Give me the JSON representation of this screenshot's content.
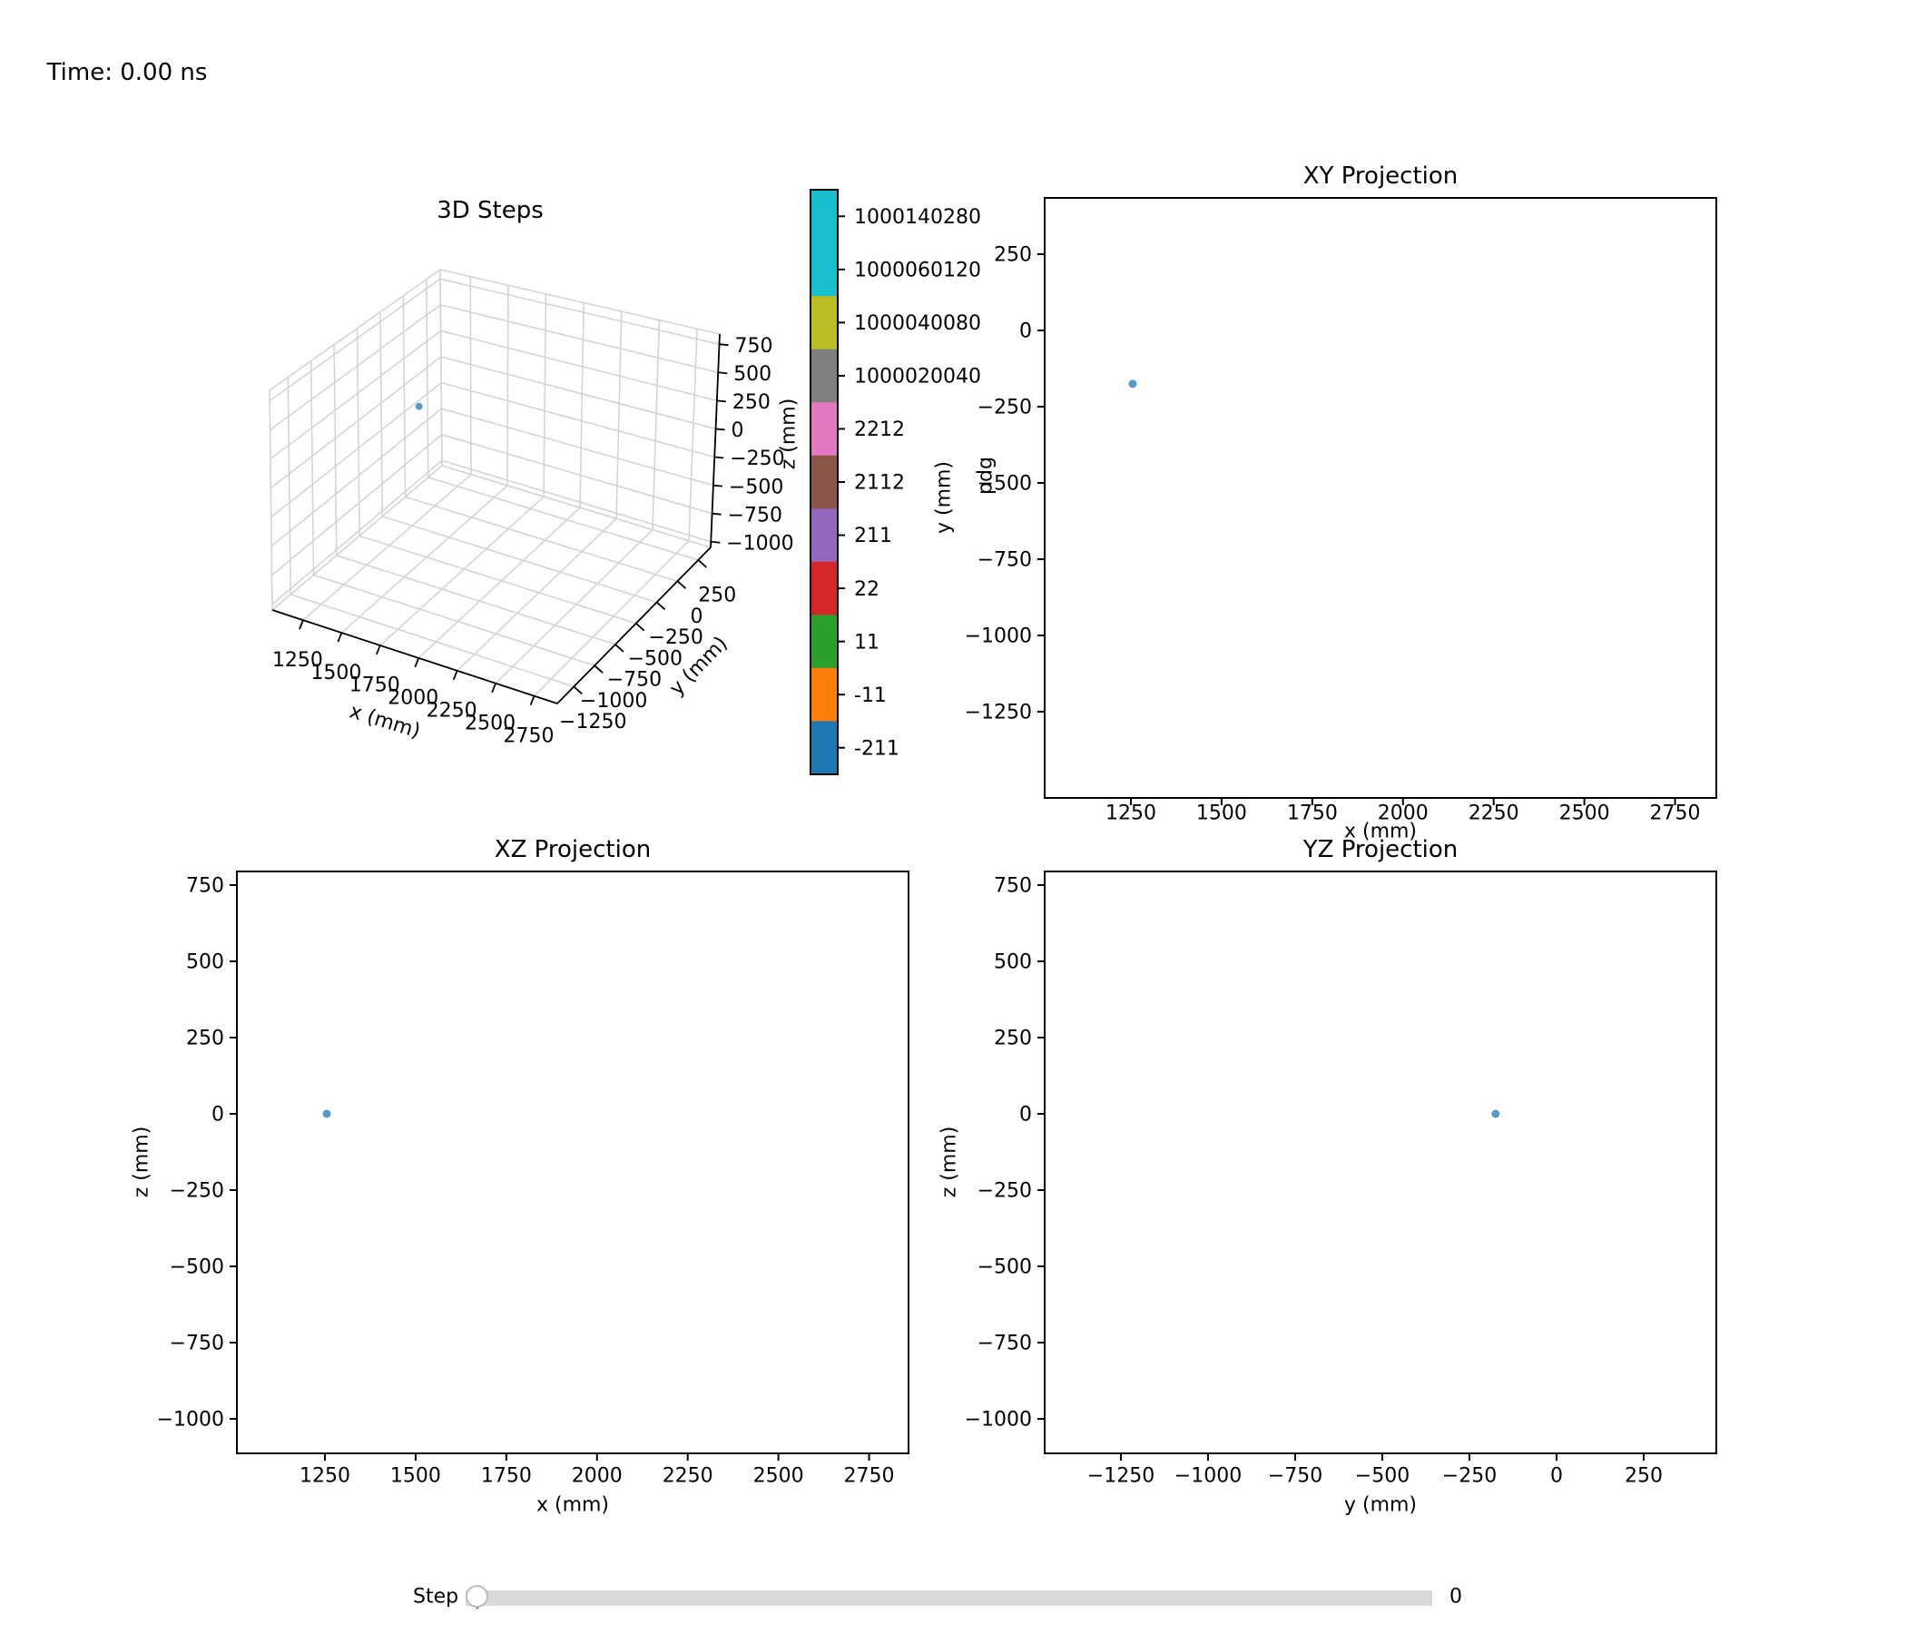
{
  "time_label": "Time: 0.00 ns",
  "slider": {
    "label": "Step",
    "value": "0"
  },
  "colorbar": {
    "label": "pdg",
    "entries": [
      {
        "pdg": "1000140280",
        "color": "#17becf"
      },
      {
        "pdg": "1000060120",
        "color": "#17becf"
      },
      {
        "pdg": "1000040080",
        "color": "#bcbd22"
      },
      {
        "pdg": "1000020040",
        "color": "#7f7f7f"
      },
      {
        "pdg": "2212",
        "color": "#e377c2"
      },
      {
        "pdg": "2112",
        "color": "#8c564b"
      },
      {
        "pdg": "211",
        "color": "#9467bd"
      },
      {
        "pdg": "22",
        "color": "#d62728"
      },
      {
        "pdg": "11",
        "color": "#2ca02c"
      },
      {
        "pdg": "-11",
        "color": "#ff7f0e"
      },
      {
        "pdg": "-211",
        "color": "#1f77b4"
      }
    ]
  },
  "point_style": {
    "color": "#1f77b4",
    "alpha": 0.75,
    "radius": 4.5
  },
  "chart_data": [
    {
      "id": "steps3d",
      "type": "scatter",
      "projection": "3d",
      "title": "3D Steps",
      "xlabel": "x (mm)",
      "ylabel": "y (mm)",
      "zlabel": "z (mm)",
      "xticks": [
        1250,
        1500,
        1750,
        2000,
        2250,
        2500,
        2750
      ],
      "yticks": [
        250,
        0,
        -250,
        -500,
        -750,
        -1000,
        -1250
      ],
      "zticks": [
        750,
        500,
        250,
        0,
        -250,
        -500,
        -750,
        -1000
      ],
      "xlim": [
        1050,
        2900
      ],
      "ylim": [
        -1450,
        400
      ],
      "zlim": [
        -1050,
        840
      ],
      "grid": true,
      "points": [
        {
          "x": 1255,
          "y": -175,
          "z": 0
        }
      ]
    },
    {
      "id": "xy",
      "type": "scatter",
      "title": "XY Projection",
      "xlabel": "x (mm)",
      "ylabel": "y (mm)",
      "xticks": [
        1250,
        1500,
        1750,
        2000,
        2250,
        2500,
        2750
      ],
      "yticks": [
        250,
        0,
        -250,
        -500,
        -750,
        -1000,
        -1250
      ],
      "xlim": [
        1010,
        2865
      ],
      "ylim": [
        -1530,
        435
      ],
      "grid": false,
      "points": [
        {
          "x": 1255,
          "y": -175
        }
      ]
    },
    {
      "id": "xz",
      "type": "scatter",
      "title": "XZ Projection",
      "xlabel": "x (mm)",
      "ylabel": "z (mm)",
      "xticks": [
        1250,
        1500,
        1750,
        2000,
        2250,
        2500,
        2750
      ],
      "yticks": [
        750,
        500,
        250,
        0,
        -250,
        -500,
        -750,
        -1000
      ],
      "xlim": [
        1007,
        2860
      ],
      "ylim": [
        -1113,
        795
      ],
      "grid": false,
      "points": [
        {
          "x": 1255,
          "z": 0
        }
      ]
    },
    {
      "id": "yz",
      "type": "scatter",
      "title": "YZ Projection",
      "xlabel": "y (mm)",
      "ylabel": "z (mm)",
      "xticks": [
        -1250,
        -1000,
        -750,
        -500,
        -250,
        0,
        250
      ],
      "yticks": [
        750,
        500,
        250,
        0,
        -250,
        -500,
        -750,
        -1000
      ],
      "xlim": [
        -1469,
        458
      ],
      "ylim": [
        -1113,
        795
      ],
      "grid": false,
      "points": [
        {
          "y": -175,
          "z": 0
        }
      ]
    }
  ]
}
